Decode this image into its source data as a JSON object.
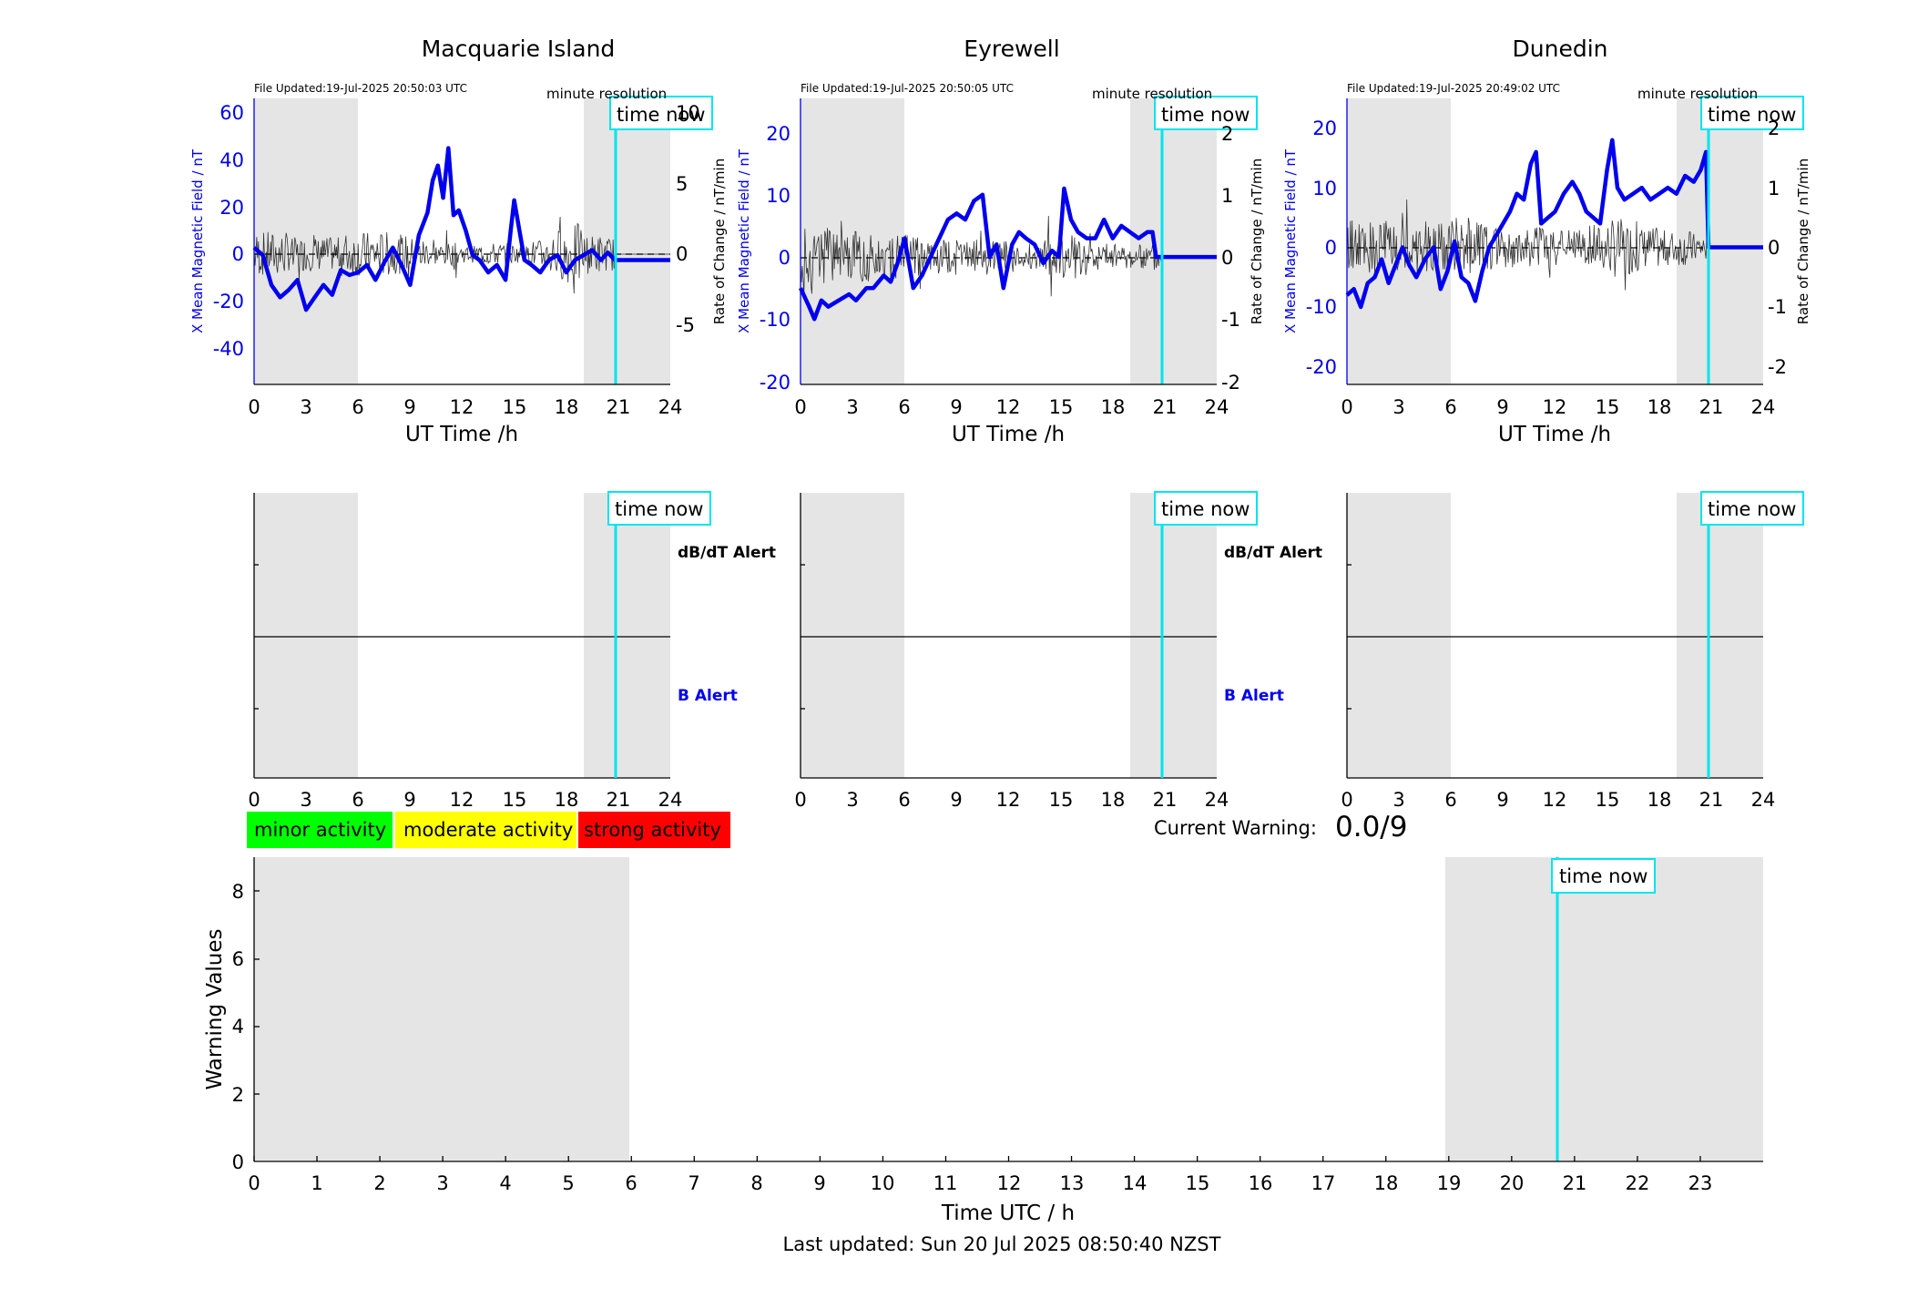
{
  "colors": {
    "background": "#ffffff",
    "night_shade": "#e5e5e5",
    "b_line": "#0000ee",
    "rate_line": "#333333",
    "time_now": "#00e5ee",
    "axis": "#000000",
    "minor": "#00ff00",
    "moderate": "#ffff00",
    "strong": "#ff0000"
  },
  "chart_data": [
    {
      "type": "line",
      "station": "Macquarie Island",
      "title": "Macquarie Island",
      "file_updated": "File Updated:19-Jul-2025 20:50:03 UTC",
      "resolution": "minute resolution",
      "time_now_label": "time now",
      "time_now": 20.83,
      "night_shading": [
        [
          0,
          6
        ],
        [
          19.1,
          24
        ]
      ],
      "xlabel": "UT Time /h",
      "ylabel_left": "X Mean Magnetic Field / nT",
      "ylabel_right": "Rate of Change / nT/min",
      "xlim": [
        0,
        24
      ],
      "xticks": [
        "0",
        "3",
        "6",
        "9",
        "12",
        "15",
        "18",
        "21",
        "24"
      ],
      "ylim_left": [
        -50,
        65
      ],
      "yticks_left": [
        "-40",
        "-20",
        "0",
        "20",
        "40",
        "60"
      ],
      "ylim_right": [
        -9.2,
        11
      ],
      "yticks_right": [
        "-5",
        "0",
        "5",
        "10"
      ],
      "series": [
        {
          "key": "b",
          "x": [
            0,
            0.5,
            1,
            1.5,
            2,
            2.5,
            3,
            3.5,
            4,
            4.5,
            5,
            5.5,
            6,
            6.5,
            7,
            7.5,
            8,
            8.5,
            9,
            9.5,
            10,
            10.3,
            10.6,
            10.9,
            11.2,
            11.5,
            11.8,
            12.2,
            12.6,
            13,
            13.5,
            14,
            14.5,
            14.8,
            15,
            15.3,
            15.6,
            16,
            16.5,
            17,
            17.5,
            18,
            18.5,
            19,
            19.5,
            20,
            20.4,
            20.8,
            21,
            22,
            23,
            24
          ],
          "y": [
            5,
            2,
            -10,
            -15,
            -12,
            -8,
            -20,
            -15,
            -10,
            -14,
            -4,
            -6,
            -5,
            -2,
            -8,
            -1,
            5,
            -2,
            -10,
            10,
            19,
            32,
            38,
            25,
            45,
            18,
            20,
            12,
            2,
            0,
            -5,
            -2,
            -8,
            12,
            24,
            12,
            0,
            -2,
            -5,
            0,
            2,
            -5,
            0,
            2,
            4,
            0,
            3,
            0,
            0,
            0,
            0,
            0
          ]
        },
        {
          "key": "rate",
          "amplitude": [
            1.6,
            1.6,
            1.2,
            1.2,
            1.2,
            1.6,
            1.6,
            1.6,
            1.4,
            1.2,
            0.8,
            0.8,
            0.6,
            0.8,
            0.8,
            0.6,
            1,
            1.8,
            2.2,
            1.4,
            1.2,
            0.8,
            0.9,
            0.9,
            0.8,
            0.3
          ]
        }
      ]
    },
    {
      "type": "line",
      "station": "Eyrewell",
      "title": "Eyrewell",
      "file_updated": "File Updated:19-Jul-2025 20:50:05 UTC",
      "resolution": "minute resolution",
      "time_now_label": "time now",
      "time_now": 20.83,
      "night_shading": [
        [
          0,
          6
        ],
        [
          19.1,
          24
        ]
      ],
      "xlabel": "UT Time /h",
      "ylabel_left": "X Mean Magnetic Field / nT",
      "ylabel_right": "Rate of Change / nT/min",
      "xlim": [
        0,
        24
      ],
      "xticks": [
        "0",
        "3",
        "6",
        "9",
        "12",
        "15",
        "18",
        "21",
        "24"
      ],
      "ylim_left": [
        -20.5,
        25.5
      ],
      "yticks_left": [
        "-20",
        "-10",
        "0",
        "10",
        "20"
      ],
      "ylim_right": [
        -2.03,
        2.5
      ],
      "yticks_right": [
        "-2",
        "-1",
        "0",
        "1",
        "2"
      ],
      "series": [
        {
          "key": "b",
          "x": [
            0,
            0.5,
            0.8,
            1.2,
            1.6,
            2.2,
            2.8,
            3.2,
            3.8,
            4.2,
            4.8,
            5.2,
            5.6,
            6,
            6.5,
            7,
            7.5,
            8,
            8.5,
            9,
            9.5,
            10,
            10.5,
            10.9,
            11.3,
            11.7,
            12.2,
            12.6,
            13,
            13.5,
            14,
            14.5,
            14.9,
            15.2,
            15.6,
            16,
            16.5,
            17,
            17.5,
            18,
            18.5,
            19,
            19.5,
            20,
            20.3,
            20.5,
            21,
            22,
            23,
            24
          ],
          "y": [
            -5,
            -8,
            -10,
            -7,
            -8,
            -7,
            -6,
            -7,
            -5,
            -5,
            -3,
            -4,
            -1,
            3,
            -5,
            -3,
            0,
            3,
            6,
            7,
            6,
            9,
            10,
            0,
            2,
            -5,
            2,
            4,
            3,
            2,
            -1,
            1,
            0,
            11,
            6,
            4,
            3,
            3,
            6,
            3,
            5,
            4,
            3,
            4,
            4,
            0,
            0,
            0,
            0,
            0
          ]
        },
        {
          "key": "rate",
          "amplitude": [
            0.45,
            0.45,
            0.4,
            0.4,
            0.35,
            0.35,
            0.35,
            0.3,
            0.3,
            0.25,
            0.3,
            0.25,
            0.2,
            0.2,
            0.3,
            0.35,
            0.3,
            0.25,
            0.2,
            0.2,
            0.25,
            0.25,
            0.2,
            0.2,
            0.2,
            0.05
          ]
        }
      ]
    },
    {
      "type": "line",
      "station": "Dunedin",
      "title": "Dunedin",
      "file_updated": "File Updated:19-Jul-2025 20:49:02 UTC",
      "resolution": "minute resolution",
      "time_now_label": "time now",
      "time_now": 20.83,
      "night_shading": [
        [
          0,
          6
        ],
        [
          19.1,
          24
        ]
      ],
      "xlabel": "UT Time /h",
      "ylabel_left": "X Mean Magnetic Field / nT",
      "ylabel_right": "Rate of Change / nT/min",
      "xlim": [
        0,
        24
      ],
      "xticks": [
        "0",
        "3",
        "6",
        "9",
        "12",
        "15",
        "18",
        "21",
        "24"
      ],
      "ylim_left": [
        -23,
        25
      ],
      "yticks_left": [
        "-20",
        "-10",
        "0",
        "10",
        "20"
      ],
      "ylim_right": [
        -2.3,
        2.5
      ],
      "yticks_right": [
        "-2",
        "-1",
        "0",
        "1",
        "2"
      ],
      "series": [
        {
          "key": "b",
          "x": [
            0,
            0.4,
            0.8,
            1.2,
            1.6,
            2,
            2.4,
            2.8,
            3.2,
            3.6,
            4,
            4.5,
            5,
            5.4,
            5.8,
            6.2,
            6.6,
            7,
            7.4,
            7.8,
            8.2,
            8.6,
            9,
            9.4,
            9.8,
            10.2,
            10.6,
            10.9,
            11.2,
            11.6,
            12,
            12.5,
            13,
            13.4,
            13.8,
            14.2,
            14.6,
            15,
            15.3,
            15.6,
            16,
            16.5,
            17,
            17.5,
            18,
            18.5,
            19,
            19.5,
            20,
            20.4,
            20.7,
            20.85,
            21,
            22,
            23,
            24
          ],
          "y": [
            -8,
            -7,
            -10,
            -6,
            -5,
            -2,
            -6,
            -3,
            0,
            -3,
            -5,
            -2,
            0,
            -7,
            -4,
            1,
            -5,
            -6,
            -9,
            -4,
            0,
            2,
            4,
            6,
            9,
            8,
            14,
            16,
            4,
            5,
            6,
            9,
            11,
            9,
            6,
            5,
            4,
            13,
            18,
            10,
            8,
            9,
            10,
            8,
            9,
            10,
            9,
            12,
            11,
            13,
            16,
            0,
            0,
            0,
            0,
            0
          ]
        },
        {
          "key": "rate",
          "amplitude": [
            0.5,
            0.45,
            0.45,
            0.4,
            0.45,
            0.5,
            0.5,
            0.45,
            0.4,
            0.35,
            0.35,
            0.35,
            0.3,
            0.3,
            0.4,
            0.5,
            0.45,
            0.35,
            0.3,
            0.3,
            0.25,
            0.25,
            0.25,
            0.3,
            0.25,
            0.05
          ]
        }
      ]
    },
    {
      "type": "bar",
      "station": "Macquarie Island",
      "time_now_label": "time now",
      "time_now": 20.83,
      "night_shading": [
        [
          0,
          6
        ],
        [
          19.1,
          24
        ]
      ],
      "xlim": [
        0,
        24
      ],
      "xticks": [
        "0",
        "3",
        "6",
        "9",
        "12",
        "15",
        "18",
        "21",
        "24"
      ],
      "dbdt_label": "dB/dT Alert",
      "b_label": "B Alert",
      "dbdt_alert": [],
      "b_alert": []
    },
    {
      "type": "bar",
      "station": "Eyrewell",
      "time_now_label": "time now",
      "time_now": 20.83,
      "night_shading": [
        [
          0,
          6
        ],
        [
          19.1,
          24
        ]
      ],
      "xlim": [
        0,
        24
      ],
      "xticks": [
        "0",
        "3",
        "6",
        "9",
        "12",
        "15",
        "18",
        "21",
        "24"
      ],
      "dbdt_label": "dB/dT Alert",
      "b_label": "B Alert",
      "dbdt_alert": [],
      "b_alert": []
    },
    {
      "type": "bar",
      "station": "Dunedin",
      "time_now_label": "time now",
      "time_now": 20.83,
      "night_shading": [
        [
          0,
          6
        ],
        [
          19.1,
          24
        ]
      ],
      "xlim": [
        0,
        24
      ],
      "xticks": [
        "0",
        "3",
        "6",
        "9",
        "12",
        "15",
        "18",
        "21",
        "24"
      ],
      "dbdt_label": "",
      "b_label": "",
      "dbdt_alert": [],
      "b_alert": []
    },
    {
      "type": "bar",
      "xlabel": "Time UTC / h",
      "ylabel": "Warning Values",
      "xlim": [
        0,
        24
      ],
      "ylim": [
        0,
        9
      ],
      "xticks": [
        "0",
        "1",
        "2",
        "3",
        "4",
        "5",
        "6",
        "7",
        "8",
        "9",
        "10",
        "11",
        "12",
        "13",
        "14",
        "15",
        "16",
        "17",
        "18",
        "19",
        "20",
        "21",
        "22",
        "23"
      ],
      "yticks": [
        "0",
        "2",
        "4",
        "6",
        "8"
      ],
      "night_shading": [
        [
          0,
          6
        ],
        [
          19.1,
          24
        ]
      ],
      "time_now_label": "time now",
      "time_now": 20.83,
      "values": [],
      "current_warning_label": "Current Warning:",
      "current_warning_value": "0.0/9",
      "legend": [
        "minor activity",
        "moderate activity",
        "strong activity"
      ]
    }
  ],
  "footer": {
    "last_updated": "Last updated: Sun 20 Jul 2025 08:50:40 NZST"
  }
}
